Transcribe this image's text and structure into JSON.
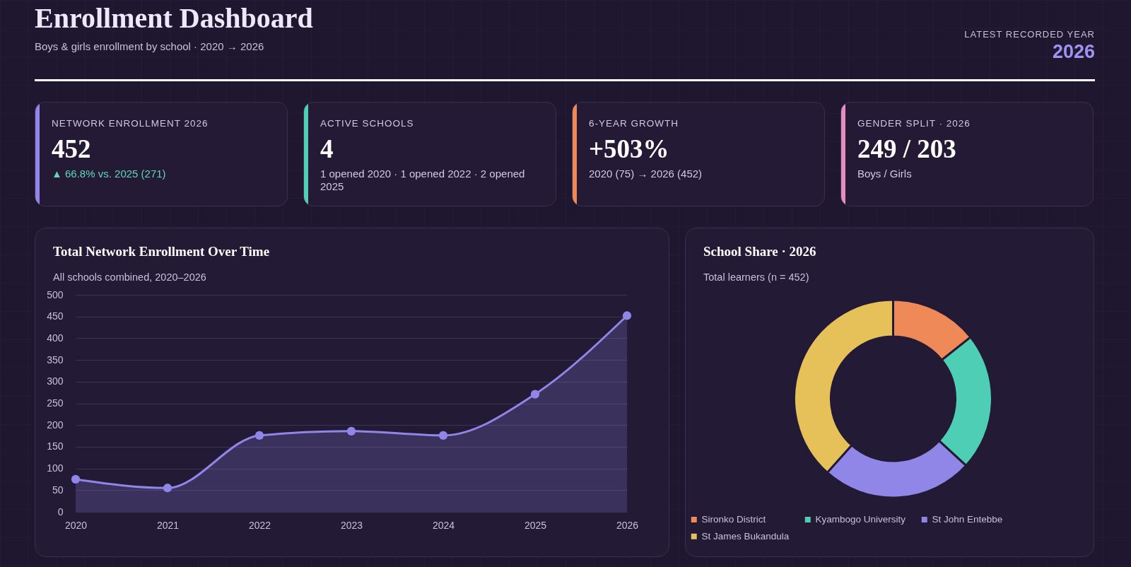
{
  "chart_data": [
    {
      "type": "other",
      "title": "Enrollment Dashboard",
      "subtitle": "Boys & girls enrollment by school · 2020 → 2026",
      "annotations": [
        "LATEST RECORDED YEAR",
        "2026"
      ]
    },
    {
      "type": "other",
      "title": "NETWORK ENROLLMENT 2026",
      "annotations": [
        "452",
        "▲ 66.8% vs. 2025 (271)"
      ]
    },
    {
      "type": "other",
      "title": "ACTIVE SCHOOLS",
      "annotations": [
        "4",
        "1 opened 2020 · 1 opened 2022 · 2 opened 2025"
      ]
    },
    {
      "type": "other",
      "title": "6-YEAR GROWTH",
      "annotations": [
        "+503%",
        "2020 (75) → 2026 (452)"
      ]
    },
    {
      "type": "other",
      "title": "GENDER SPLIT · 2026",
      "annotations": [
        "249 / 203",
        "Boys / Girls"
      ]
    },
    {
      "type": "area",
      "title": "Total Network Enrollment Over Time",
      "subtitle": "All schools combined, 2020–2026",
      "x": [
        2020,
        2021,
        2022,
        2023,
        2024,
        2025,
        2026
      ],
      "series": [
        {
          "color": "#8f86e8",
          "values": [
            75,
            55,
            176,
            186,
            176,
            271,
            452
          ]
        }
      ],
      "xlim": [
        2020,
        2026
      ],
      "xticks": [
        2020,
        2021,
        2022,
        2023,
        2024,
        2025,
        2026
      ],
      "ylim": [
        0,
        500
      ],
      "yticks": [
        0,
        50,
        100,
        150,
        200,
        250,
        300,
        350,
        400,
        450,
        500
      ],
      "grid": "y",
      "marker": "circle"
    },
    {
      "type": "donut",
      "title": "School Share · 2026",
      "subtitle": "Total learners (n = 452)",
      "categories": [
        "Sironko District",
        "Kyambogo University",
        "St John Entebbe",
        "St James Bukandula"
      ],
      "values": [
        14.3,
        22.5,
        24.8,
        38.4
      ],
      "colors": [
        "#ef8a58",
        "#4ecfb5",
        "#8f86e8",
        "#e6c15a"
      ],
      "legend": "bottom"
    }
  ]
}
